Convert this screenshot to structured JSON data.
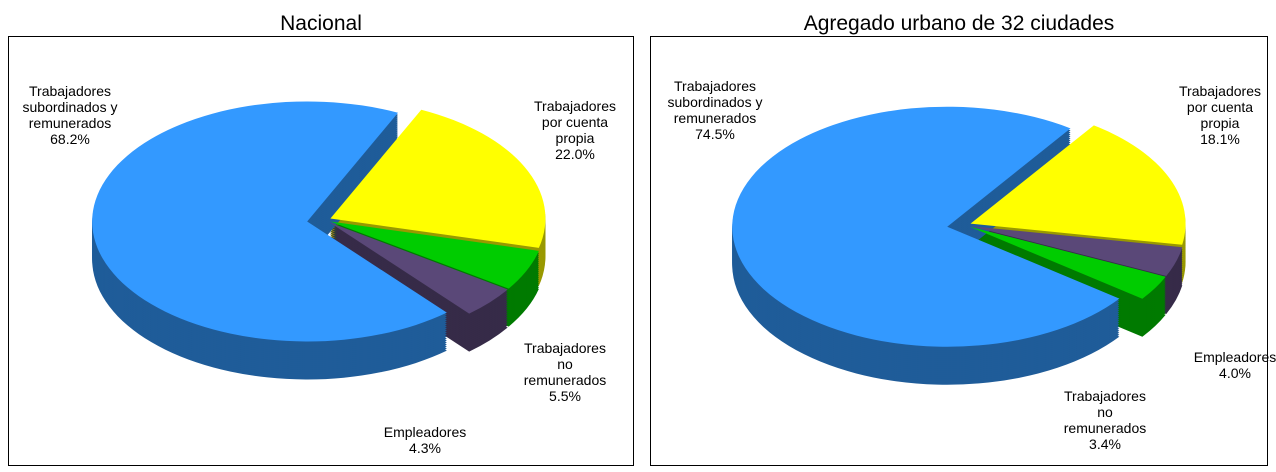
{
  "chart_data": [
    {
      "type": "pie",
      "title": "Nacional",
      "categories": [
        "Trabajadores\npor cuenta\npropia",
        "Trabajadores\nno\nremunerados",
        "Empleadores",
        "Trabajadores\nsubordinados y\nremunerados"
      ],
      "values": [
        22.0,
        5.5,
        4.3,
        68.2
      ],
      "value_labels": [
        "22.0%",
        "5.5%",
        "4.3%",
        "68.2%"
      ],
      "colors": [
        "#ffff00",
        "#00cc00",
        "#5a4878",
        "#3399ff"
      ]
    },
    {
      "type": "pie",
      "title": "Agregado urbano de 32 ciudades",
      "categories": [
        "Trabajadores\npor cuenta\npropia",
        "Empleadores",
        "Trabajadores\nno\nremunerados",
        "Trabajadores\nsubordinados y\nremunerados"
      ],
      "values": [
        18.1,
        4.0,
        3.4,
        74.5
      ],
      "value_labels": [
        "18.1%",
        "4.0%",
        "3.4%",
        "74.5%"
      ],
      "colors": [
        "#ffff00",
        "#5a4878",
        "#00cc00",
        "#3399ff"
      ]
    }
  ]
}
